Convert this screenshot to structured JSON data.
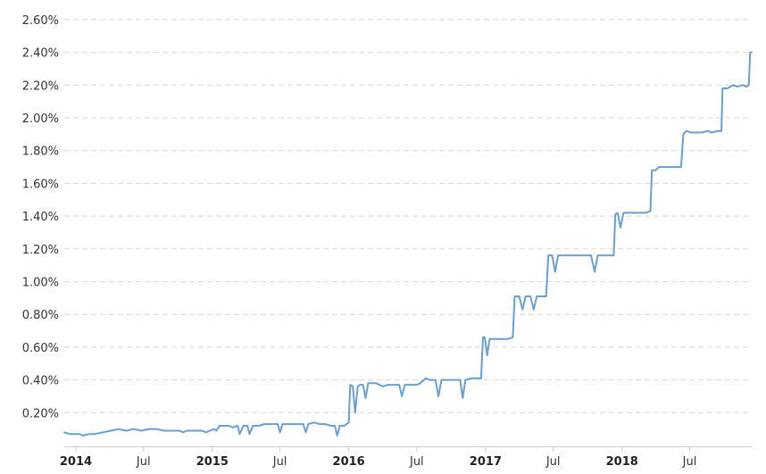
{
  "chart_data": {
    "type": "line",
    "title": "",
    "xlabel": "",
    "ylabel": "",
    "ylim": [
      0.0,
      2.6
    ],
    "y_ticks": [
      "0.20%",
      "0.40%",
      "0.60%",
      "0.80%",
      "1.00%",
      "1.20%",
      "1.40%",
      "1.60%",
      "1.80%",
      "2.00%",
      "2.20%",
      "2.40%",
      "2.60%"
    ],
    "x_ticks": [
      {
        "label": "2014",
        "date": "2014-01-01",
        "bold": true
      },
      {
        "label": "Jul",
        "date": "2014-07-01",
        "bold": false
      },
      {
        "label": "2015",
        "date": "2015-01-01",
        "bold": true
      },
      {
        "label": "Jul",
        "date": "2015-07-01",
        "bold": false
      },
      {
        "label": "2016",
        "date": "2016-01-01",
        "bold": true
      },
      {
        "label": "Jul",
        "date": "2016-07-01",
        "bold": false
      },
      {
        "label": "2017",
        "date": "2017-01-01",
        "bold": true
      },
      {
        "label": "Jul",
        "date": "2017-07-01",
        "bold": false
      },
      {
        "label": "2018",
        "date": "2018-01-01",
        "bold": true
      },
      {
        "label": "Jul",
        "date": "2018-07-01",
        "bold": false
      }
    ],
    "x_range": [
      "2013-12-01",
      "2018-12-14"
    ],
    "grid": true,
    "line_color": "#6a9fd4",
    "series": [
      {
        "values": [
          [
            "2013-12-01",
            0.08
          ],
          [
            "2013-12-15",
            0.07
          ],
          [
            "2014-01-10",
            0.07
          ],
          [
            "2014-01-20",
            0.06
          ],
          [
            "2014-02-05",
            0.07
          ],
          [
            "2014-02-20",
            0.07
          ],
          [
            "2014-03-15",
            0.08
          ],
          [
            "2014-04-05",
            0.09
          ],
          [
            "2014-04-25",
            0.1
          ],
          [
            "2014-05-15",
            0.09
          ],
          [
            "2014-06-05",
            0.1
          ],
          [
            "2014-06-25",
            0.09
          ],
          [
            "2014-07-15",
            0.1
          ],
          [
            "2014-08-05",
            0.1
          ],
          [
            "2014-08-25",
            0.09
          ],
          [
            "2014-09-20",
            0.09
          ],
          [
            "2014-10-05",
            0.09
          ],
          [
            "2014-10-15",
            0.08
          ],
          [
            "2014-10-25",
            0.09
          ],
          [
            "2014-11-15",
            0.09
          ],
          [
            "2014-12-05",
            0.09
          ],
          [
            "2014-12-15",
            0.08
          ],
          [
            "2014-12-25",
            0.09
          ],
          [
            "2015-01-05",
            0.1
          ],
          [
            "2015-01-12",
            0.09
          ],
          [
            "2015-01-20",
            0.12
          ],
          [
            "2015-02-05",
            0.12
          ],
          [
            "2015-02-15",
            0.12
          ],
          [
            "2015-02-25",
            0.11
          ],
          [
            "2015-03-10",
            0.12
          ],
          [
            "2015-03-15",
            0.07
          ],
          [
            "2015-03-25",
            0.12
          ],
          [
            "2015-04-05",
            0.12
          ],
          [
            "2015-04-10",
            0.07
          ],
          [
            "2015-04-20",
            0.12
          ],
          [
            "2015-05-05",
            0.12
          ],
          [
            "2015-05-20",
            0.13
          ],
          [
            "2015-06-10",
            0.13
          ],
          [
            "2015-06-25",
            0.13
          ],
          [
            "2015-07-01",
            0.08
          ],
          [
            "2015-07-08",
            0.13
          ],
          [
            "2015-07-25",
            0.13
          ],
          [
            "2015-08-15",
            0.13
          ],
          [
            "2015-09-01",
            0.13
          ],
          [
            "2015-09-08",
            0.08
          ],
          [
            "2015-09-15",
            0.13
          ],
          [
            "2015-09-30",
            0.14
          ],
          [
            "2015-10-15",
            0.13
          ],
          [
            "2015-10-30",
            0.13
          ],
          [
            "2015-11-15",
            0.12
          ],
          [
            "2015-11-25",
            0.12
          ],
          [
            "2015-12-01",
            0.06
          ],
          [
            "2015-12-08",
            0.12
          ],
          [
            "2015-12-20",
            0.12
          ],
          [
            "2016-01-01",
            0.14
          ],
          [
            "2016-01-05",
            0.37
          ],
          [
            "2016-01-12",
            0.36
          ],
          [
            "2016-01-18",
            0.2
          ],
          [
            "2016-01-25",
            0.36
          ],
          [
            "2016-02-01",
            0.37
          ],
          [
            "2016-02-08",
            0.37
          ],
          [
            "2016-02-15",
            0.29
          ],
          [
            "2016-02-22",
            0.38
          ],
          [
            "2016-03-15",
            0.38
          ],
          [
            "2016-04-01",
            0.36
          ],
          [
            "2016-04-15",
            0.37
          ],
          [
            "2016-05-05",
            0.37
          ],
          [
            "2016-05-15",
            0.37
          ],
          [
            "2016-05-22",
            0.3
          ],
          [
            "2016-05-30",
            0.37
          ],
          [
            "2016-06-15",
            0.37
          ],
          [
            "2016-07-01",
            0.37
          ],
          [
            "2016-07-10",
            0.38
          ],
          [
            "2016-07-25",
            0.41
          ],
          [
            "2016-08-05",
            0.4
          ],
          [
            "2016-08-20",
            0.4
          ],
          [
            "2016-08-28",
            0.3
          ],
          [
            "2016-09-05",
            0.4
          ],
          [
            "2016-09-20",
            0.4
          ],
          [
            "2016-10-10",
            0.4
          ],
          [
            "2016-10-25",
            0.4
          ],
          [
            "2016-11-01",
            0.29
          ],
          [
            "2016-11-08",
            0.4
          ],
          [
            "2016-11-25",
            0.41
          ],
          [
            "2016-12-10",
            0.41
          ],
          [
            "2016-12-20",
            0.41
          ],
          [
            "2016-12-25",
            0.66
          ],
          [
            "2016-12-30",
            0.66
          ],
          [
            "2017-01-05",
            0.55
          ],
          [
            "2017-01-12",
            0.65
          ],
          [
            "2017-02-05",
            0.65
          ],
          [
            "2017-03-01",
            0.65
          ],
          [
            "2017-03-15",
            0.66
          ],
          [
            "2017-03-20",
            0.91
          ],
          [
            "2017-04-01",
            0.91
          ],
          [
            "2017-04-10",
            0.83
          ],
          [
            "2017-04-18",
            0.91
          ],
          [
            "2017-05-01",
            0.91
          ],
          [
            "2017-05-10",
            0.83
          ],
          [
            "2017-05-18",
            0.91
          ],
          [
            "2017-06-01",
            0.91
          ],
          [
            "2017-06-12",
            0.91
          ],
          [
            "2017-06-18",
            1.16
          ],
          [
            "2017-06-28",
            1.16
          ],
          [
            "2017-07-06",
            1.06
          ],
          [
            "2017-07-14",
            1.16
          ],
          [
            "2017-08-15",
            1.16
          ],
          [
            "2017-09-15",
            1.16
          ],
          [
            "2017-10-10",
            1.16
          ],
          [
            "2017-10-20",
            1.06
          ],
          [
            "2017-10-28",
            1.16
          ],
          [
            "2017-11-20",
            1.16
          ],
          [
            "2017-12-10",
            1.16
          ],
          [
            "2017-12-14",
            1.41
          ],
          [
            "2017-12-20",
            1.42
          ],
          [
            "2017-12-28",
            1.33
          ],
          [
            "2018-01-05",
            1.42
          ],
          [
            "2018-02-01",
            1.42
          ],
          [
            "2018-03-05",
            1.42
          ],
          [
            "2018-03-18",
            1.43
          ],
          [
            "2018-03-22",
            1.68
          ],
          [
            "2018-04-01",
            1.68
          ],
          [
            "2018-04-10",
            1.7
          ],
          [
            "2018-05-10",
            1.7
          ],
          [
            "2018-06-08",
            1.7
          ],
          [
            "2018-06-14",
            1.9
          ],
          [
            "2018-06-22",
            1.92
          ],
          [
            "2018-07-05",
            1.91
          ],
          [
            "2018-08-01",
            1.91
          ],
          [
            "2018-08-20",
            1.92
          ],
          [
            "2018-08-28",
            1.91
          ],
          [
            "2018-09-15",
            1.92
          ],
          [
            "2018-09-24",
            1.92
          ],
          [
            "2018-09-27",
            2.18
          ],
          [
            "2018-10-10",
            2.18
          ],
          [
            "2018-10-25",
            2.2
          ],
          [
            "2018-11-05",
            2.19
          ],
          [
            "2018-11-20",
            2.2
          ],
          [
            "2018-12-01",
            2.19
          ],
          [
            "2018-12-06",
            2.2
          ],
          [
            "2018-12-10",
            2.4
          ],
          [
            "2018-12-14",
            2.4
          ]
        ]
      }
    ]
  }
}
